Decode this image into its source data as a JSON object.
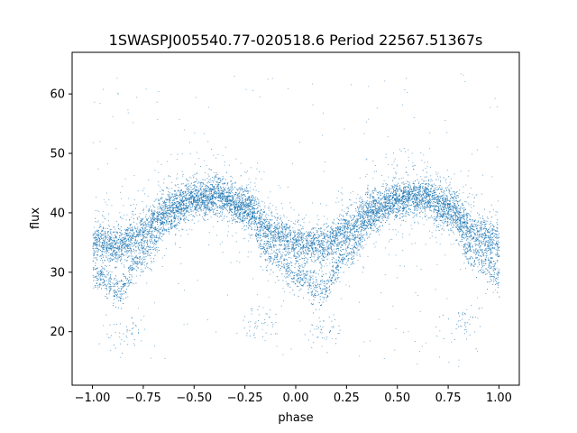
{
  "chart_data": {
    "type": "scatter",
    "title": "1SWASPJ005540.77-020518.6 Period 22567.51367s",
    "xlabel": "phase",
    "ylabel": "flux",
    "xlim": [
      -1.1,
      1.1
    ],
    "ylim": [
      11,
      67
    ],
    "xticks": [
      -1.0,
      -0.75,
      -0.5,
      -0.25,
      0.0,
      0.25,
      0.5,
      0.75,
      1.0
    ],
    "xtick_labels": [
      "−1.00",
      "−0.75",
      "−0.50",
      "−0.25",
      "0.00",
      "0.25",
      "0.50",
      "0.75",
      "1.00"
    ],
    "yticks": [
      20,
      30,
      40,
      50,
      60
    ],
    "ytick_labels": [
      "20",
      "30",
      "40",
      "50",
      "60"
    ],
    "grid": false,
    "point_color": "#1f77b4",
    "phase_range": [
      -1.0,
      1.0
    ],
    "series": [
      {
        "profile": "upper branch",
        "curve": [
          {
            "phase": -1.0,
            "flux": 35.0
          },
          {
            "phase": -0.875,
            "flux": 34.5
          },
          {
            "phase": -0.75,
            "flux": 37.0
          },
          {
            "phase": -0.625,
            "flux": 41.0
          },
          {
            "phase": -0.5,
            "flux": 42.5
          },
          {
            "phase": -0.4,
            "flux": 43.2
          },
          {
            "phase": -0.25,
            "flux": 41.5
          },
          {
            "phase": -0.125,
            "flux": 37.0
          },
          {
            "phase": 0.0,
            "flux": 35.0
          },
          {
            "phase": 0.125,
            "flux": 34.5
          },
          {
            "phase": 0.25,
            "flux": 37.0
          },
          {
            "phase": 0.375,
            "flux": 41.0
          },
          {
            "phase": 0.5,
            "flux": 42.5
          },
          {
            "phase": 0.6,
            "flux": 43.2
          },
          {
            "phase": 0.75,
            "flux": 41.5
          },
          {
            "phase": 0.875,
            "flux": 37.0
          },
          {
            "phase": 1.0,
            "flux": 35.0
          }
        ]
      },
      {
        "profile": "lower branch",
        "curve": [
          {
            "phase": -1.0,
            "flux": 30.0
          },
          {
            "phase": -0.875,
            "flux": 27.0
          },
          {
            "phase": -0.75,
            "flux": 33.0
          },
          {
            "phase": -0.625,
            "flux": 39.0
          },
          {
            "phase": -0.5,
            "flux": 42.0
          },
          {
            "phase": -0.375,
            "flux": 42.5
          },
          {
            "phase": -0.25,
            "flux": 40.0
          },
          {
            "phase": -0.125,
            "flux": 33.0
          },
          {
            "phase": 0.0,
            "flux": 29.5
          },
          {
            "phase": 0.125,
            "flux": 27.0
          },
          {
            "phase": 0.25,
            "flux": 33.0
          },
          {
            "phase": 0.375,
            "flux": 39.0
          },
          {
            "phase": 0.5,
            "flux": 42.0
          },
          {
            "phase": 0.625,
            "flux": 42.5
          },
          {
            "phase": 0.75,
            "flux": 40.0
          },
          {
            "phase": 0.875,
            "flux": 33.0
          },
          {
            "phase": 1.0,
            "flux": 29.5
          }
        ]
      },
      {
        "profile": "faint dip clusters",
        "curve": [
          {
            "phase": -0.85,
            "flux": 20.0
          },
          {
            "phase": -0.18,
            "flux": 21.5
          },
          {
            "phase": 0.15,
            "flux": 20.0
          },
          {
            "phase": 0.82,
            "flux": 21.5
          }
        ]
      }
    ]
  }
}
